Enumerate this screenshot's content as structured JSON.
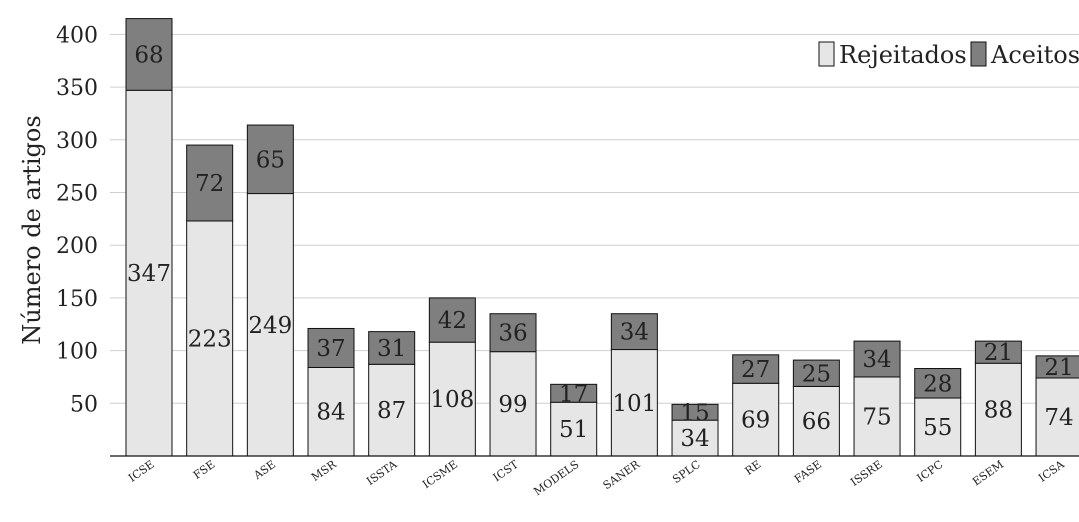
{
  "chart_data": {
    "type": "bar",
    "stacked": true,
    "ylabel": "Número de artigos",
    "xlabel": "",
    "ylim": [
      0,
      420
    ],
    "yticks": [
      50,
      100,
      150,
      200,
      250,
      300,
      350,
      400
    ],
    "grid": true,
    "legend_position": "top-right",
    "categories": [
      "ICSE",
      "FSE",
      "ASE",
      "MSR",
      "ISSTA",
      "ICSME",
      "ICST",
      "MODELS",
      "SANER",
      "SPLC",
      "RE",
      "FASE",
      "ISSRE",
      "ICPC",
      "ESEM",
      "ICSA"
    ],
    "series": [
      {
        "name": "Rejeitados",
        "color": "#e6e6e6",
        "values": [
          347,
          223,
          249,
          84,
          87,
          108,
          99,
          51,
          101,
          34,
          69,
          66,
          75,
          55,
          88,
          74
        ]
      },
      {
        "name": "Aceitos",
        "color": "#7f7f7f",
        "values": [
          68,
          72,
          65,
          37,
          31,
          42,
          36,
          17,
          34,
          15,
          27,
          25,
          34,
          28,
          21,
          21
        ]
      }
    ]
  }
}
